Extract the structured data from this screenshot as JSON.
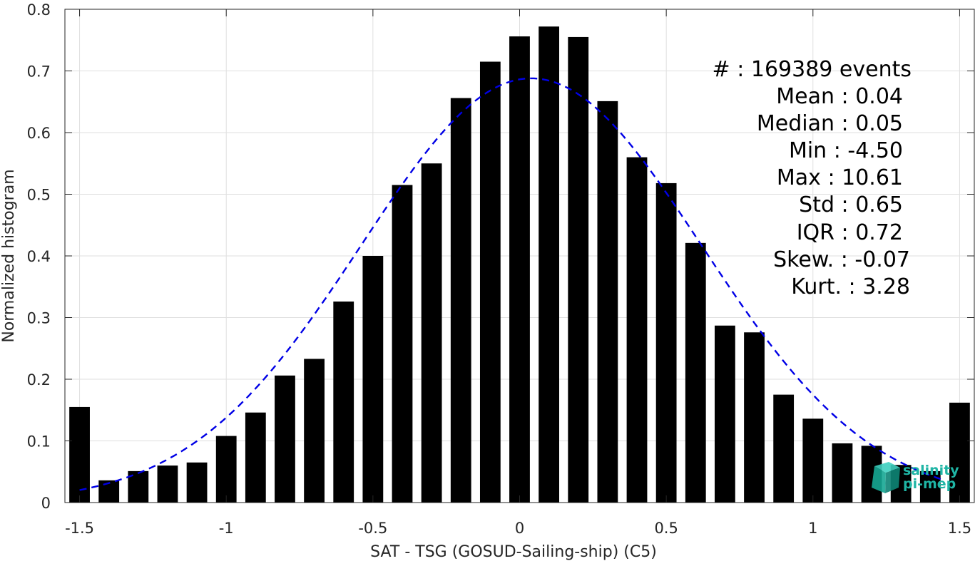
{
  "chart_data": {
    "type": "bar",
    "title": "",
    "xlabel": "SAT - TSG (GOSUD-Sailing-ship) (C5)",
    "ylabel": "Normalized histogram",
    "xlim": [
      -1.55,
      1.55
    ],
    "ylim": [
      0,
      0.8
    ],
    "xticks": [
      -1.5,
      -1,
      -0.5,
      0,
      0.5,
      1,
      1.5
    ],
    "xtick_labels": [
      "-1.5",
      "-1",
      "-0.5",
      "0",
      "0.5",
      "1",
      "1.5"
    ],
    "yticks": [
      0,
      0.1,
      0.2,
      0.3,
      0.4,
      0.5,
      0.6,
      0.7,
      0.8
    ],
    "ytick_labels": [
      "0",
      "0.1",
      "0.2",
      "0.3",
      "0.4",
      "0.5",
      "0.6",
      "0.7",
      "0.8"
    ],
    "grid": true,
    "bar_color": "#000000",
    "bar_width": 0.07,
    "bars": [
      {
        "x": -1.5,
        "value": 0.155
      },
      {
        "x": -1.4,
        "value": 0.036
      },
      {
        "x": -1.3,
        "value": 0.051
      },
      {
        "x": -1.2,
        "value": 0.06
      },
      {
        "x": -1.1,
        "value": 0.065
      },
      {
        "x": -1.0,
        "value": 0.108
      },
      {
        "x": -0.9,
        "value": 0.146
      },
      {
        "x": -0.8,
        "value": 0.206
      },
      {
        "x": -0.7,
        "value": 0.233
      },
      {
        "x": -0.6,
        "value": 0.326
      },
      {
        "x": -0.5,
        "value": 0.4
      },
      {
        "x": -0.4,
        "value": 0.515
      },
      {
        "x": -0.3,
        "value": 0.55
      },
      {
        "x": -0.2,
        "value": 0.656
      },
      {
        "x": -0.1,
        "value": 0.715
      },
      {
        "x": 0.0,
        "value": 0.756
      },
      {
        "x": 0.1,
        "value": 0.772
      },
      {
        "x": 0.2,
        "value": 0.755
      },
      {
        "x": 0.3,
        "value": 0.651
      },
      {
        "x": 0.4,
        "value": 0.56
      },
      {
        "x": 0.5,
        "value": 0.518
      },
      {
        "x": 0.6,
        "value": 0.421
      },
      {
        "x": 0.7,
        "value": 0.287
      },
      {
        "x": 0.8,
        "value": 0.276
      },
      {
        "x": 0.9,
        "value": 0.175
      },
      {
        "x": 1.0,
        "value": 0.136
      },
      {
        "x": 1.1,
        "value": 0.096
      },
      {
        "x": 1.2,
        "value": 0.092
      },
      {
        "x": 1.3,
        "value": 0.061
      },
      {
        "x": 1.4,
        "value": 0.051
      },
      {
        "x": 1.5,
        "value": 0.162
      }
    ],
    "fit_curve": {
      "type": "gaussian",
      "style": "dashed",
      "color": "#0000e6",
      "peak": 0.688,
      "mean": 0.04,
      "sigma": 0.58,
      "x_range": [
        -1.5,
        1.45
      ]
    },
    "annotations": [
      "#  : 169389 events",
      "Mean : 0.04",
      "Median : 0.05",
      "Min : -4.50",
      "Max : 10.61",
      "Std : 0.65",
      "IQR : 0.72",
      "Skew. : -0.07",
      "Kurt. : 3.28"
    ]
  },
  "logo": {
    "text_line1": "salinity",
    "text_line2": "pi-mep",
    "color": "#1fb5a5"
  }
}
